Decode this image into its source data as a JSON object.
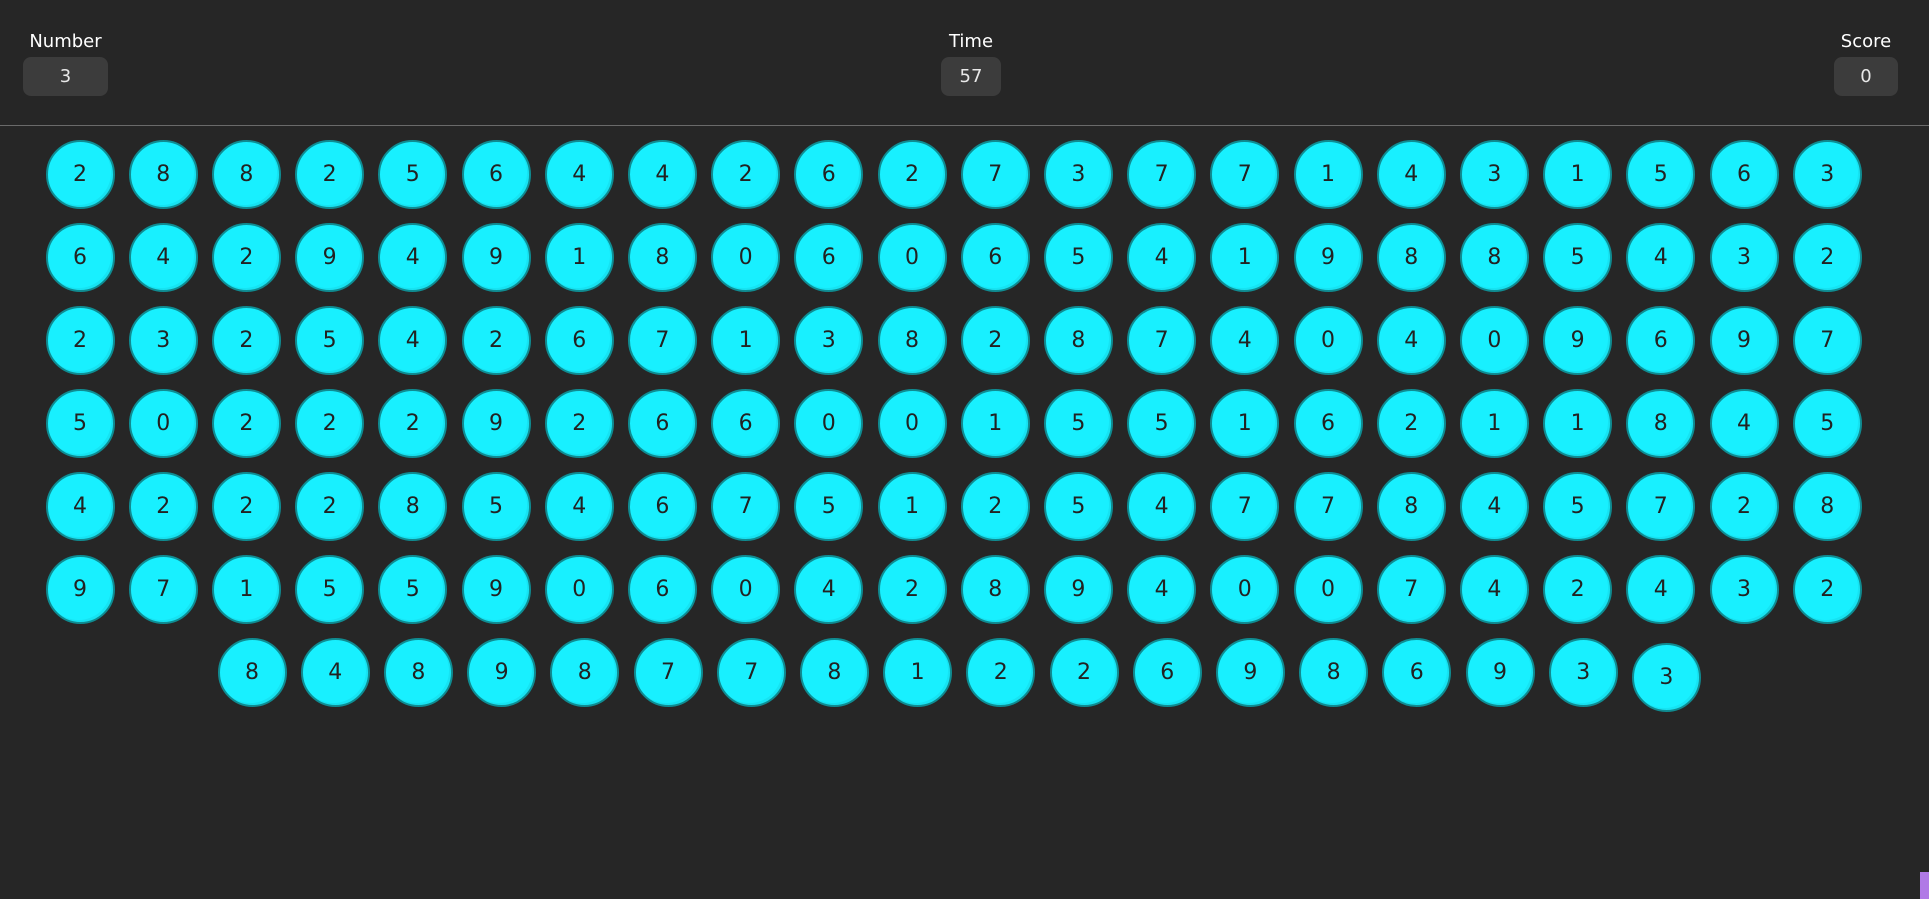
{
  "header": {
    "number": {
      "label": "Number",
      "value": "3"
    },
    "time": {
      "label": "Time",
      "value": "57"
    },
    "score": {
      "label": "Score",
      "value": "0"
    }
  },
  "board": {
    "rows": [
      [
        "2",
        "8",
        "8",
        "2",
        "5",
        "6",
        "4",
        "4",
        "2",
        "6",
        "2",
        "7",
        "3",
        "7",
        "7",
        "1",
        "4",
        "3",
        "1",
        "5",
        "6",
        "3"
      ],
      [
        "6",
        "4",
        "2",
        "9",
        "4",
        "9",
        "1",
        "8",
        "0",
        "6",
        "0",
        "6",
        "5",
        "4",
        "1",
        "9",
        "8",
        "8",
        "5",
        "4",
        "3",
        "2"
      ],
      [
        "2",
        "3",
        "2",
        "5",
        "4",
        "2",
        "6",
        "7",
        "1",
        "3",
        "8",
        "2",
        "8",
        "7",
        "4",
        "0",
        "4",
        "0",
        "9",
        "6",
        "9",
        "7"
      ],
      [
        "5",
        "0",
        "2",
        "2",
        "2",
        "9",
        "2",
        "6",
        "6",
        "0",
        "0",
        "1",
        "5",
        "5",
        "1",
        "6",
        "2",
        "1",
        "1",
        "8",
        "4",
        "5"
      ],
      [
        "4",
        "2",
        "2",
        "2",
        "8",
        "5",
        "4",
        "6",
        "7",
        "5",
        "1",
        "2",
        "5",
        "4",
        "7",
        "7",
        "8",
        "4",
        "5",
        "7",
        "2",
        "8"
      ],
      [
        "9",
        "7",
        "1",
        "5",
        "5",
        "9",
        "0",
        "6",
        "0",
        "4",
        "2",
        "8",
        "9",
        "4",
        "0",
        "0",
        "7",
        "4",
        "2",
        "4",
        "3",
        "2"
      ],
      [
        "8",
        "4",
        "8",
        "9",
        "8",
        "7",
        "7",
        "8",
        "1",
        "2",
        "2",
        "6",
        "9",
        "8",
        "6",
        "9",
        "3",
        "3"
      ]
    ]
  },
  "colors": {
    "background": "#262626",
    "ball": "#18f0ff",
    "ball_border": "#0f8c92",
    "value_box": "#3c3c3c",
    "scroll_thumb": "#b07ae6"
  }
}
